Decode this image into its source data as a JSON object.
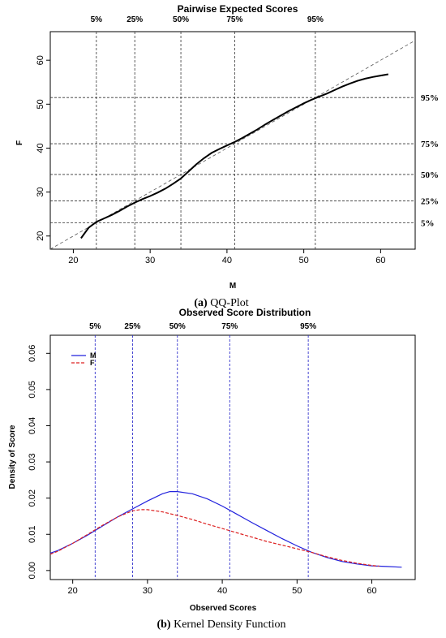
{
  "chart_data": [
    {
      "type": "line",
      "title": "Pairwise Expected Scores",
      "caption_letter": "(a)",
      "caption_text": " QQ-Plot",
      "xlabel": "M",
      "ylabel": "F",
      "xlim": [
        17,
        64.5
      ],
      "ylim": [
        17,
        66.5
      ],
      "xticks": [
        20,
        30,
        40,
        50,
        60
      ],
      "yticks": [
        20,
        30,
        40,
        50,
        60
      ],
      "reference_line": "y = x",
      "percentile_labels": [
        "5%",
        "25%",
        "50%",
        "75%",
        "95%"
      ],
      "percentile_x": [
        23,
        28,
        34,
        41,
        51.5
      ],
      "percentile_y": [
        23,
        28,
        34,
        41,
        51.5
      ],
      "series": [
        {
          "x": [
            21,
            21.5,
            22,
            23,
            24,
            25,
            26,
            27,
            28,
            29,
            30,
            31,
            32,
            33,
            34,
            35,
            36,
            37,
            38,
            39,
            40,
            41,
            42,
            43,
            44,
            45,
            46,
            47,
            48,
            49,
            50,
            51,
            52,
            53,
            54,
            55,
            56,
            57,
            58,
            59,
            60,
            61
          ],
          "y": [
            19.5,
            20.7,
            21.9,
            23.2,
            24,
            24.8,
            25.7,
            26.7,
            27.6,
            28.4,
            29.1,
            29.9,
            30.8,
            31.9,
            33.1,
            34.7,
            36.3,
            37.7,
            38.9,
            39.8,
            40.6,
            41.4,
            42.3,
            43.3,
            44.3,
            45.4,
            46.4,
            47.4,
            48.4,
            49.3,
            50.2,
            51,
            51.7,
            52.4,
            53.2,
            54,
            54.7,
            55.3,
            55.8,
            56.2,
            56.5,
            56.8
          ]
        }
      ]
    },
    {
      "type": "line",
      "title": "Observed Score Distribution",
      "caption_letter": "(b)",
      "caption_text": " Kernel Density Function",
      "xlabel": "Observed Scores",
      "ylabel": "Density of Score",
      "xlim": [
        17,
        65.8
      ],
      "ylim": [
        -0.0025,
        0.065
      ],
      "xticks": [
        20,
        30,
        40,
        50,
        60
      ],
      "yticks": [
        0,
        0.01,
        0.02,
        0.03,
        0.04,
        0.05,
        0.06
      ],
      "ytick_labels": [
        "0.00",
        "0.01",
        "0.02",
        "0.03",
        "0.04",
        "0.05",
        "0.06"
      ],
      "legend_position": "top-left",
      "percentile_labels": [
        "5%",
        "25%",
        "50%",
        "75%",
        "95%"
      ],
      "percentile_x": [
        23,
        28,
        34,
        41,
        51.5
      ],
      "series": [
        {
          "name": "M",
          "color": "#2222dd",
          "x": [
            17,
            18,
            20,
            22,
            24,
            26,
            28,
            30,
            32,
            33,
            34,
            36,
            38,
            40,
            42,
            44,
            46,
            48,
            50,
            52,
            54,
            56,
            58,
            60,
            62,
            64
          ],
          "y": [
            0.0048,
            0.0055,
            0.0075,
            0.0098,
            0.0123,
            0.0148,
            0.017,
            0.0192,
            0.0212,
            0.0218,
            0.0218,
            0.0212,
            0.0198,
            0.0178,
            0.0155,
            0.0132,
            0.011,
            0.0088,
            0.0068,
            0.005,
            0.0036,
            0.0025,
            0.0018,
            0.0013,
            0.0011,
            0.0009
          ]
        },
        {
          "name": "F",
          "color": "#dd2222",
          "dashed": true,
          "x": [
            17,
            18,
            20,
            22,
            24,
            26,
            28,
            29,
            30,
            32,
            34,
            36,
            38,
            40,
            42,
            44,
            46,
            48,
            50,
            52,
            54,
            56,
            58,
            60,
            61
          ],
          "y": [
            0.0045,
            0.0053,
            0.0075,
            0.01,
            0.0125,
            0.0148,
            0.0165,
            0.0168,
            0.0168,
            0.0162,
            0.0152,
            0.0141,
            0.0128,
            0.0116,
            0.0104,
            0.0092,
            0.008,
            0.007,
            0.006,
            0.005,
            0.0038,
            0.0028,
            0.002,
            0.0014,
            0.0012
          ]
        }
      ]
    }
  ]
}
